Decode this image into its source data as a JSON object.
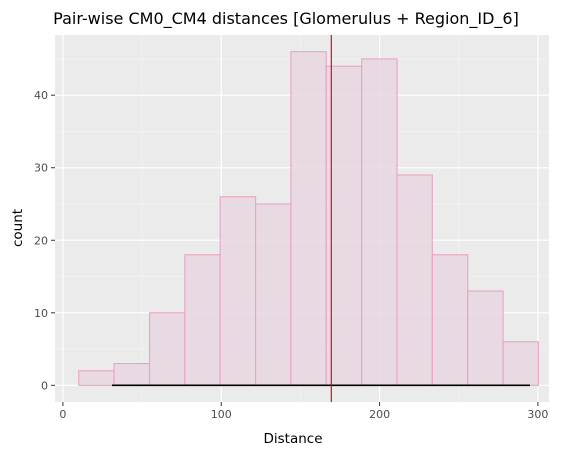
{
  "chart_data": {
    "type": "bar",
    "subtype": "histogram",
    "title": "Pair-wise CM0_CM4 distances [Glomerulus + Region_ID_6]",
    "xlabel": "Distance",
    "ylabel": "count",
    "xlim": [
      -5,
      307
    ],
    "ylim": [
      -2.3,
      48.3
    ],
    "x_ticks": [
      0,
      100,
      200,
      300
    ],
    "y_ticks": [
      0,
      10,
      20,
      30,
      40
    ],
    "grid": true,
    "bins": [
      {
        "start": 10.0,
        "end": 32.3,
        "count": 2
      },
      {
        "start": 32.3,
        "end": 54.7,
        "count": 3
      },
      {
        "start": 54.7,
        "end": 77.0,
        "count": 10
      },
      {
        "start": 77.0,
        "end": 99.3,
        "count": 18
      },
      {
        "start": 99.3,
        "end": 121.7,
        "count": 26
      },
      {
        "start": 121.7,
        "end": 144.0,
        "count": 25
      },
      {
        "start": 144.0,
        "end": 166.3,
        "count": 46
      },
      {
        "start": 166.3,
        "end": 188.7,
        "count": 44
      },
      {
        "start": 188.7,
        "end": 211.0,
        "count": 45
      },
      {
        "start": 211.0,
        "end": 233.3,
        "count": 29
      },
      {
        "start": 233.3,
        "end": 255.7,
        "count": 18
      },
      {
        "start": 255.7,
        "end": 278.0,
        "count": 13
      },
      {
        "start": 278.0,
        "end": 300.3,
        "count": 6
      }
    ],
    "vline": {
      "x": 169.5,
      "color": "#cc0000"
    },
    "baseline_segment": {
      "x_start": 31,
      "x_end": 295,
      "y": 0,
      "color": "#000000"
    },
    "bar_fill": "#e8d6e2",
    "bar_stroke": "#e8a4c3",
    "panel_bg": "#ebebeb"
  }
}
